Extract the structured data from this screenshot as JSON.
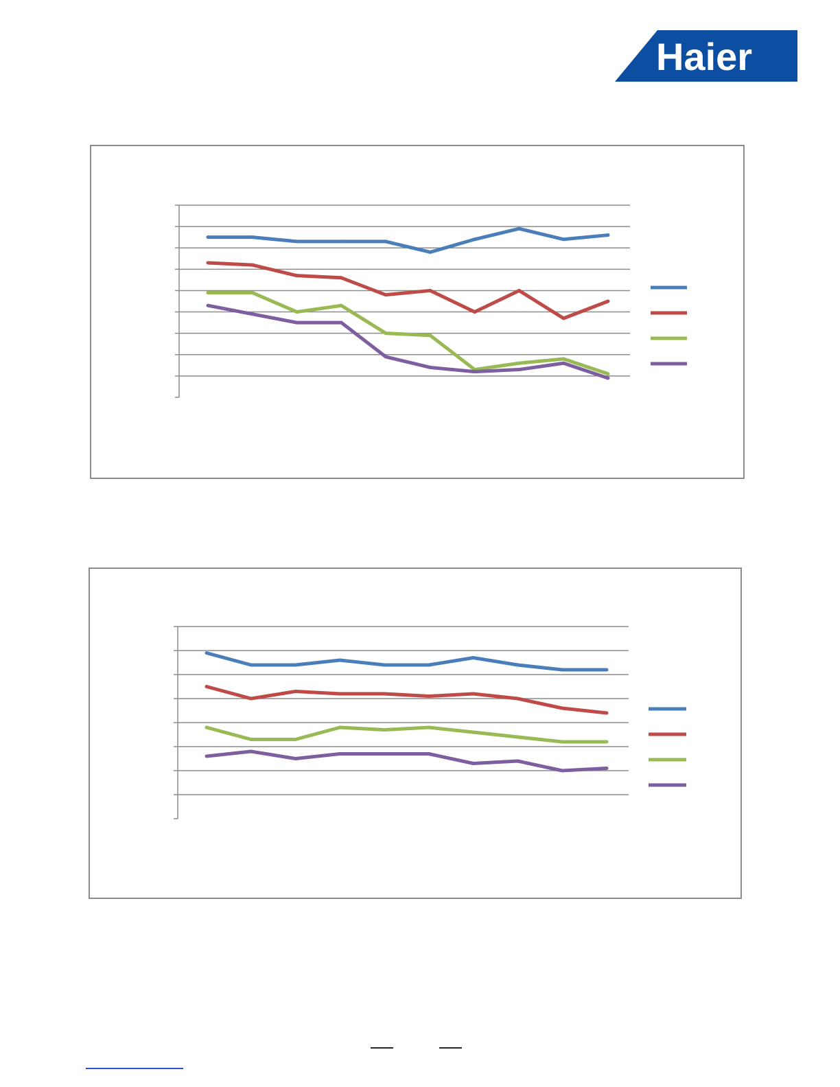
{
  "logo": {
    "text": "Haier",
    "colors": {
      "background": "#0b4ea2",
      "text": "#ffffff"
    }
  },
  "colors": {
    "series": [
      "#4a7ebb",
      "#be4b48",
      "#98b954",
      "#7d5fa0"
    ],
    "gridline": "#8c8c8c",
    "frame": "#8c8c8c"
  },
  "chart_data": [
    {
      "type": "line",
      "x": [
        1,
        2,
        3,
        4,
        5,
        6,
        7,
        8,
        9,
        10
      ],
      "ylim": [
        0,
        9
      ],
      "grid": true,
      "legend_position": "right",
      "series": [
        {
          "values": [
            7.5,
            7.5,
            7.3,
            7.3,
            7.3,
            6.8,
            7.4,
            7.9,
            7.4,
            7.6
          ]
        },
        {
          "values": [
            6.3,
            6.2,
            5.7,
            5.6,
            4.8,
            5.0,
            4.0,
            5.0,
            3.7,
            4.5
          ]
        },
        {
          "values": [
            4.9,
            4.9,
            4.0,
            4.3,
            3.0,
            2.9,
            1.3,
            1.6,
            1.8,
            1.1
          ]
        },
        {
          "values": [
            4.3,
            3.9,
            3.5,
            3.5,
            1.9,
            1.4,
            1.2,
            1.3,
            1.6,
            0.9
          ]
        }
      ]
    },
    {
      "type": "line",
      "x": [
        1,
        2,
        3,
        4,
        5,
        6,
        7,
        8,
        9,
        10
      ],
      "ylim": [
        0,
        8
      ],
      "grid": true,
      "legend_position": "right",
      "series": [
        {
          "values": [
            6.9,
            6.4,
            6.4,
            6.6,
            6.4,
            6.4,
            6.7,
            6.4,
            6.2,
            6.2
          ]
        },
        {
          "values": [
            5.5,
            5.0,
            5.3,
            5.2,
            5.2,
            5.1,
            5.2,
            5.0,
            4.6,
            4.4
          ]
        },
        {
          "values": [
            3.8,
            3.3,
            3.3,
            3.8,
            3.7,
            3.8,
            3.6,
            3.4,
            3.2,
            3.2
          ]
        },
        {
          "values": [
            2.6,
            2.8,
            2.5,
            2.7,
            2.7,
            2.7,
            2.3,
            2.4,
            2.0,
            2.1
          ]
        }
      ]
    }
  ]
}
